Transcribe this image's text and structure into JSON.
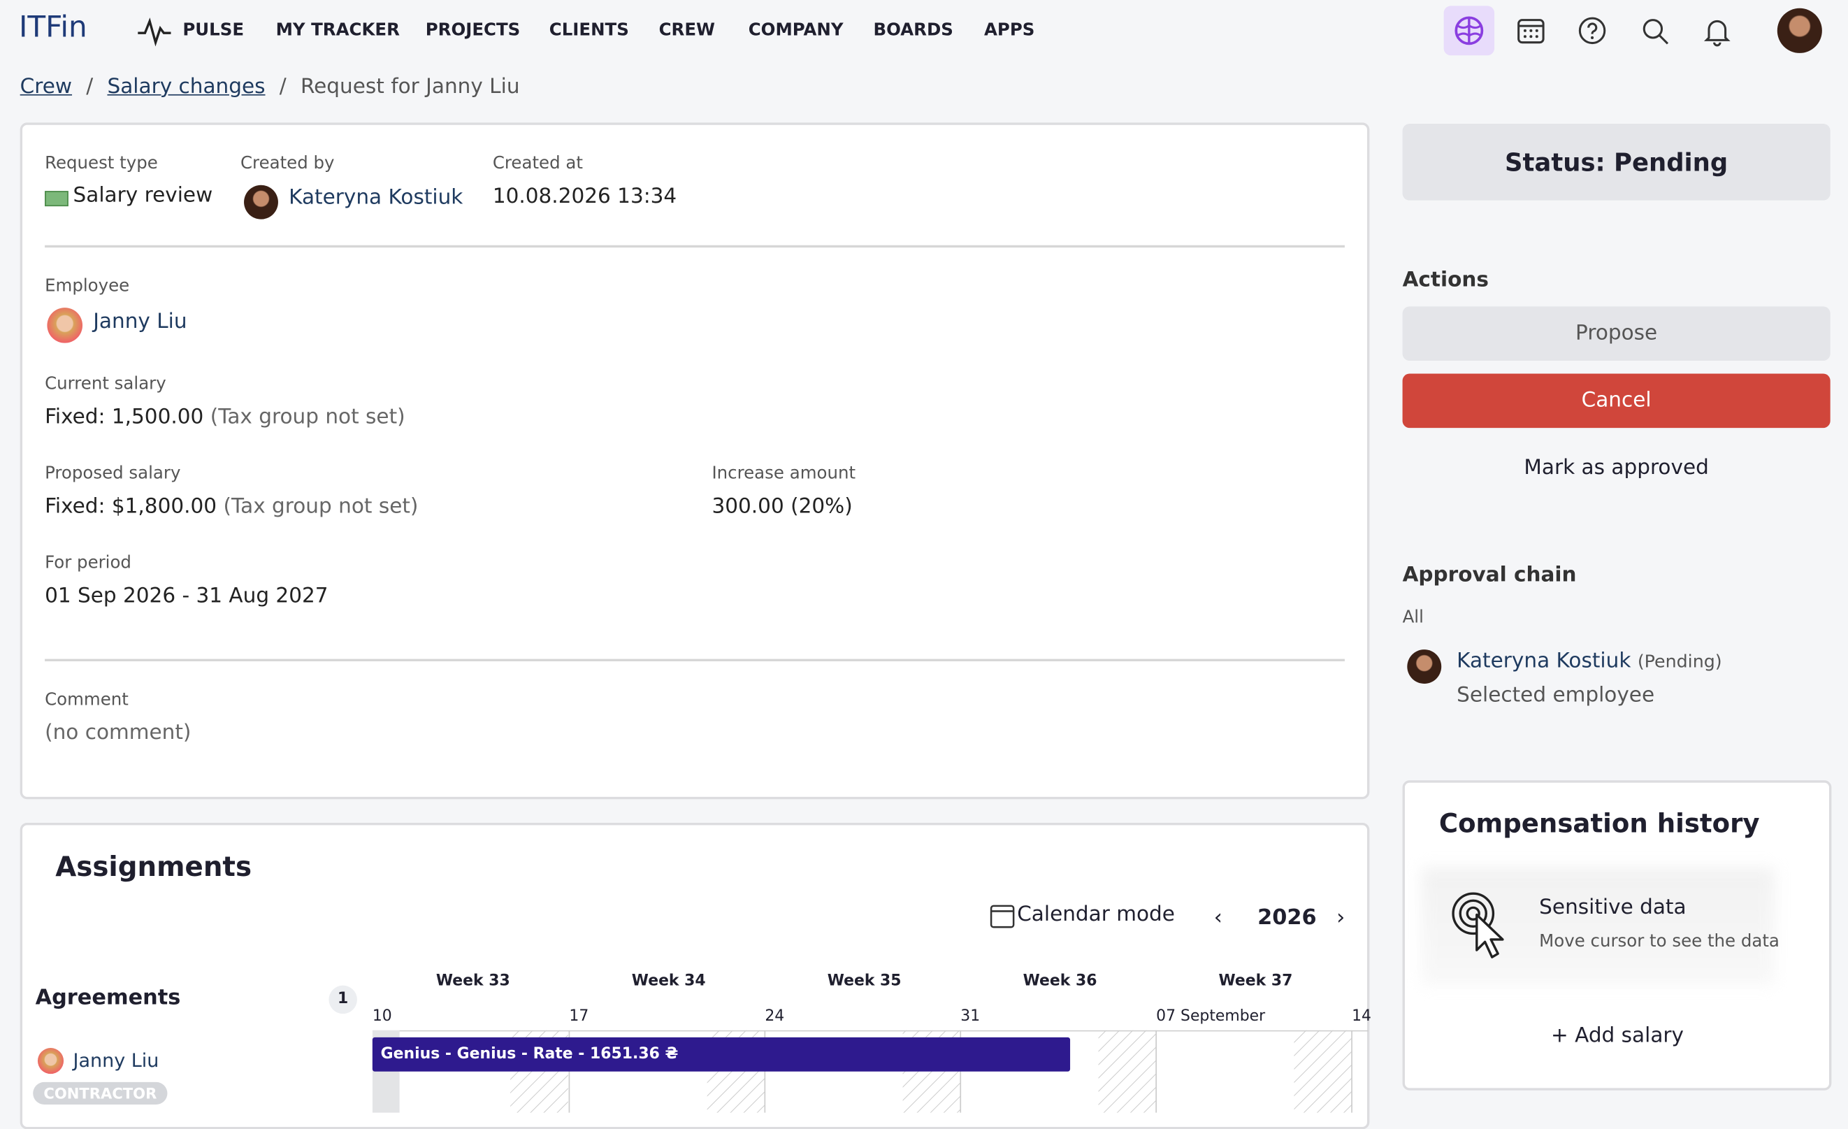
{
  "nav": {
    "logo": "ITFin",
    "items": [
      "PULSE",
      "MY TRACKER",
      "PROJECTS",
      "CLIENTS",
      "CREW",
      "COMPANY",
      "BOARDS",
      "APPS"
    ]
  },
  "breadcrumb": [
    "Crew",
    "Salary changes",
    "Request for Janny Liu"
  ],
  "request": {
    "request_type": {
      "label": "Request type",
      "value": "Salary review"
    },
    "created_by": {
      "label": "Created by",
      "value": "Kateryna Kostiuk"
    },
    "created_at": {
      "label": "Created at",
      "value": "10.08.2026 13:34"
    },
    "employee": {
      "label": "Employee",
      "value": "Janny Liu"
    },
    "current_salary": {
      "label": "Current salary",
      "value": "Fixed: 1,500.00",
      "note": "(Tax group not set)"
    },
    "proposed_salary": {
      "label": "Proposed salary",
      "value": "Fixed: $1,800.00",
      "note": "(Tax group not set)"
    },
    "increase_amount": {
      "label": "Increase amount",
      "value": "300.00 (20%)"
    },
    "period": {
      "label": "For period",
      "value": "01 Sep 2026 - 31 Aug 2027"
    },
    "comment": {
      "label": "Comment",
      "value": "(no comment)"
    }
  },
  "sidebar": {
    "status": "Status: Pending",
    "actions_title": "Actions",
    "actions": [
      "Propose",
      "Cancel",
      "Mark as approved"
    ],
    "approval_title": "Approval chain",
    "approval_scope": "All",
    "approver": {
      "name": "Kateryna Kostiuk",
      "state": "(Pending)",
      "role": "Selected employee"
    }
  },
  "compensation": {
    "title": "Compensation history",
    "sensitive_title": "Sensitive data",
    "sensitive_hint": "Move cursor to see the data",
    "add": "Add salary"
  },
  "assignments": {
    "title": "Assignments",
    "calendar_mode": "Calendar mode",
    "year": "2026",
    "agreements": "Agreements",
    "count": "1",
    "weeks": [
      "Week 33",
      "Week 34",
      "Week 35",
      "Week 36",
      "Week 37"
    ],
    "days": [
      "10",
      "17",
      "24",
      "31",
      "07 September",
      "14"
    ],
    "employee": "Janny Liu",
    "badge": "CONTRACTOR",
    "bar": "Genius - Genius - Rate - 1651.36 ₴"
  }
}
